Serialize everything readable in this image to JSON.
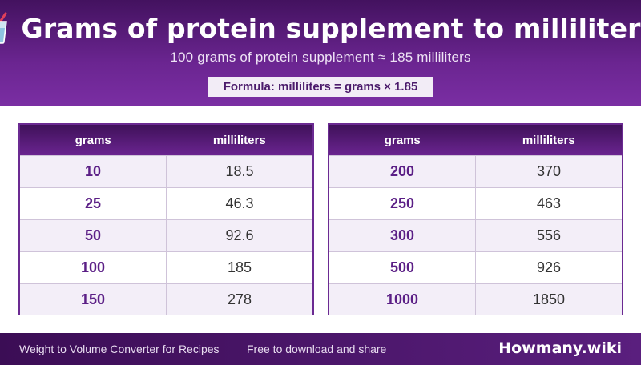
{
  "header": {
    "icon": "drink-cup-with-straw-icon",
    "title": "Grams of protein supplement to milliliters",
    "subtitle": "100 grams of protein supplement ≈ 185 milliliters",
    "formula": "Formula: milliliters = grams × 1.85"
  },
  "colors": {
    "header_dark": "#43125f",
    "header_light": "#7a2ea3",
    "accent": "#5b1f86",
    "row_alt": "#f3eef8"
  },
  "tables": [
    {
      "headers": {
        "grams": "grams",
        "milliliters": "milliliters"
      },
      "rows": [
        {
          "grams": "10",
          "milliliters": "18.5"
        },
        {
          "grams": "25",
          "milliliters": "46.3"
        },
        {
          "grams": "50",
          "milliliters": "92.6"
        },
        {
          "grams": "100",
          "milliliters": "185"
        },
        {
          "grams": "150",
          "milliliters": "278"
        }
      ]
    },
    {
      "headers": {
        "grams": "grams",
        "milliliters": "milliliters"
      },
      "rows": [
        {
          "grams": "200",
          "milliliters": "370"
        },
        {
          "grams": "250",
          "milliliters": "463"
        },
        {
          "grams": "300",
          "milliliters": "556"
        },
        {
          "grams": "500",
          "milliliters": "926"
        },
        {
          "grams": "1000",
          "milliliters": "1850"
        }
      ]
    }
  ],
  "footer": {
    "left": "Weight to Volume Converter for Recipes",
    "middle": "Free to download and share",
    "brand": "Howmany.wiki"
  }
}
